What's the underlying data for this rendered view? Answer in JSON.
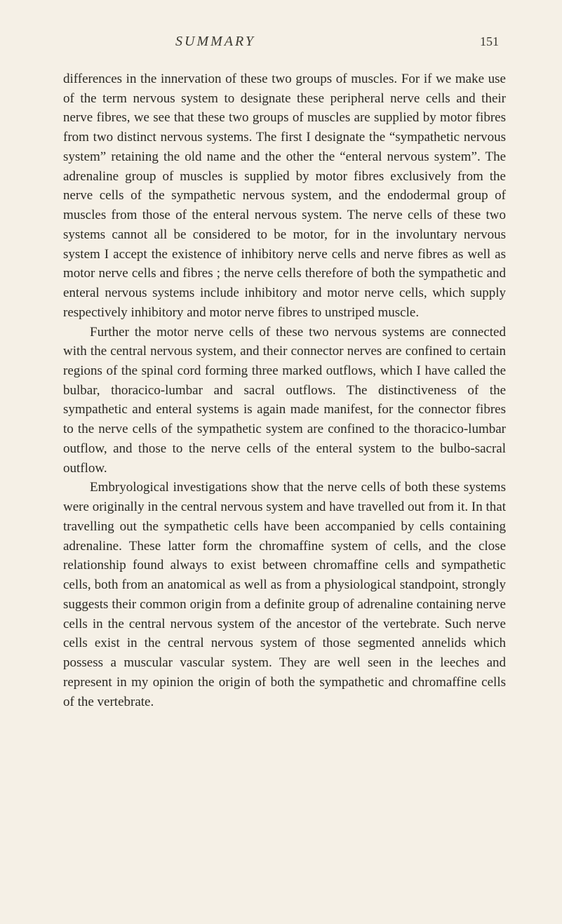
{
  "page": {
    "running_title": "SUMMARY",
    "page_number": "151",
    "background_color": "#f5f0e6",
    "text_color": "#2a2822",
    "font_family": "Georgia, serif",
    "body_fontsize": 19
  },
  "paragraphs": [
    {
      "indented": false,
      "text": "differences in the innervation of these two groups of muscles. For if we make use of the term nervous system to designate these peripheral nerve cells and their nerve fibres, we see that these two groups of muscles are supplied by motor fibres from two distinct nervous systems. The first I designate the “sym­pathetic nervous system” retaining the old name and the other the “enteral nervous system”. The adrenaline group of muscles is supplied by motor fibres exclusively from the nerve cells of the sympathetic nervous system, and the endodermal group of muscles from those of the enteral nervous system. The nerve cells of these two systems cannot all be considered to be motor, for in the involuntary nervous system I accept the existence of inhibitory nerve cells and nerve fibres as well as motor nerve cells and fibres ; the nerve cells therefore of both the sympathetic and enteral nervous systems include inhibitory and motor nerve cells, which supply respectively inhibitory and motor nerve fibres to unstriped muscle."
    },
    {
      "indented": true,
      "text": "Further the motor nerve cells of these two nervous systems are connected with the central nervous system, and their con­nector nerves are confined to certain regions of the spinal cord forming three marked outflows, which I have called the bulbar, thoracico-lumbar and sacral outflows. The distinctiveness of the sympathetic and enteral systems is again made manifest, for the connector fibres to the nerve cells of the sympathetic system are confined to the thoracico-lumbar outflow, and those to the nerve cells of the enteral system to the bulbo-sacral outflow."
    },
    {
      "indented": true,
      "text": "Embryological investigations show that the nerve cells of both these systems were originally in the central nervous system and have travelled out from it. In that travelling out the sym­pathetic cells have been accompanied by cells containing adren­aline. These latter form the chromaffine system of cells, and the close relationship found always to exist between chromaffine cells and sympathetic cells, both from an anatomical as well as from a physiological standpoint, strongly suggests their common origin from a definite group of adrenaline containing nerve cells in the central nervous system of the ancestor of the vertebrate. Such nerve cells exist in the central nervous system of those segmented annelids which possess a muscular vascular system. They are well seen in the leeches and represent in my opinion the origin of both the sympathetic and chromaffine cells of the vertebrate."
    }
  ]
}
